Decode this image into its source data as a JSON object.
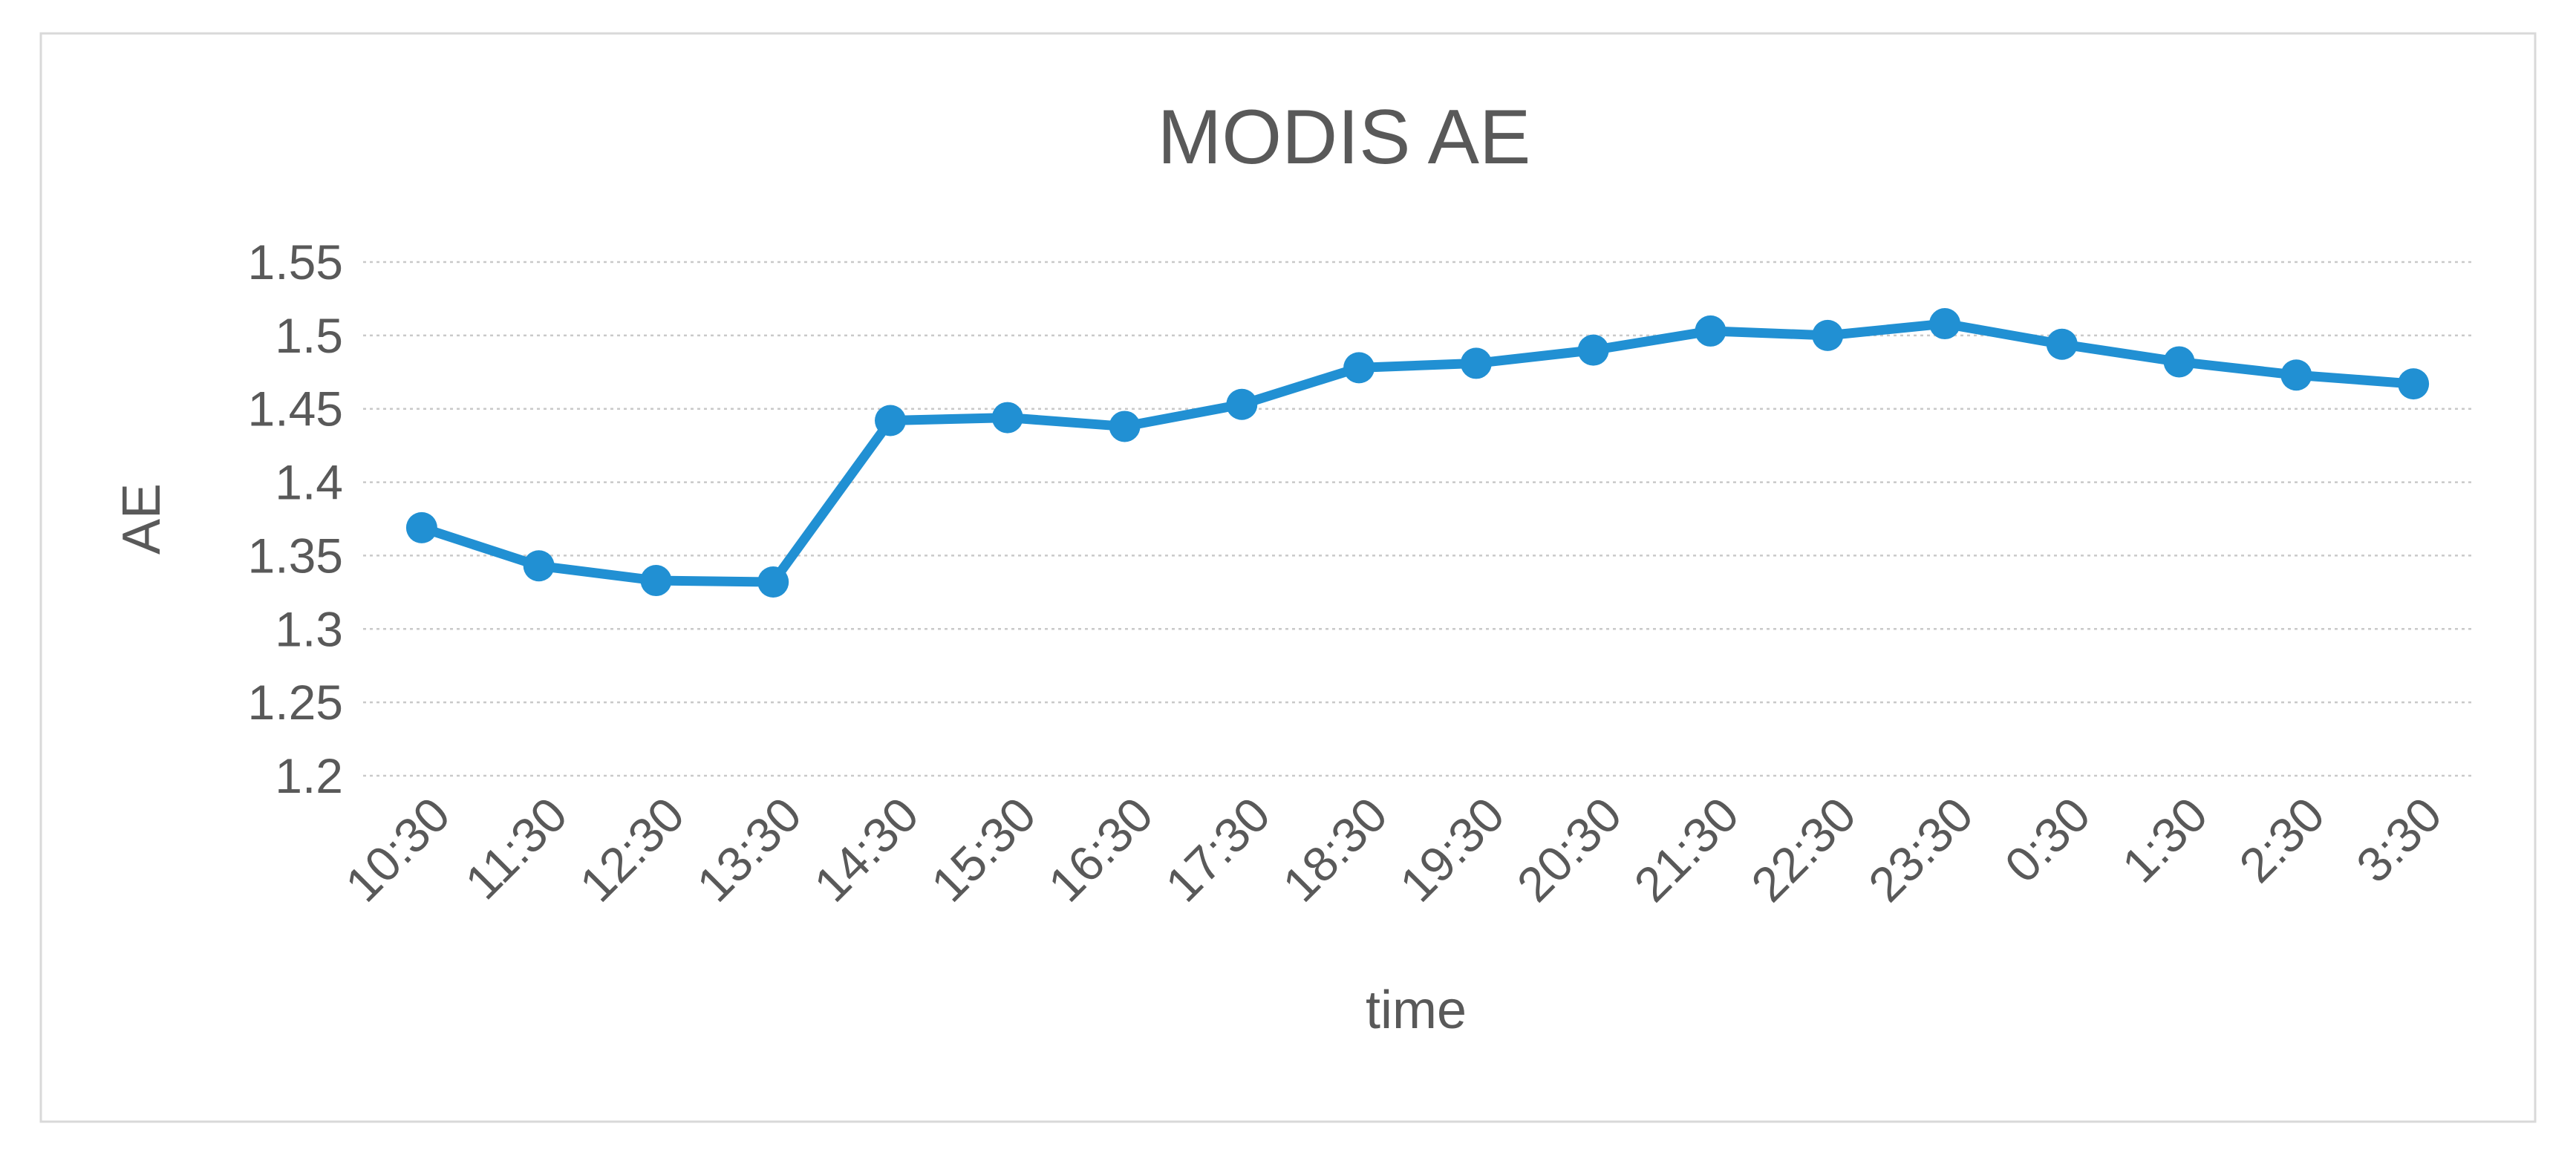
{
  "figure": {
    "background_color": "#FFFFFF",
    "border_color": "#D9D9D9"
  },
  "chart_data": {
    "type": "line",
    "title": "MODIS AE",
    "xlabel": "time",
    "ylabel": "AE",
    "categories": [
      "10:30",
      "11:30",
      "12:30",
      "13:30",
      "14:30",
      "15:30",
      "16:30",
      "17:30",
      "18:30",
      "19:30",
      "20:30",
      "21:30",
      "22:30",
      "23:30",
      "0:30",
      "1:30",
      "2:30",
      "3:30"
    ],
    "series": [
      {
        "name": "MODIS AE",
        "color": "#2190D3",
        "marker": "circle",
        "values": [
          1.369,
          1.343,
          1.333,
          1.332,
          1.442,
          1.444,
          1.438,
          1.453,
          1.478,
          1.481,
          1.49,
          1.503,
          1.5,
          1.508,
          1.494,
          1.482,
          1.473,
          1.467
        ]
      }
    ],
    "ylim": [
      1.2,
      1.55
    ],
    "ytick_step": 0.05,
    "ytick_labels": [
      "1.2",
      "1.25",
      "1.3",
      "1.35",
      "1.4",
      "1.45",
      "1.5",
      "1.55"
    ],
    "x_label_rotation_deg": -45,
    "grid": "horizontal",
    "gridline_color": "#C9C9C9",
    "legend_position": "none",
    "text_color": "#595959"
  }
}
